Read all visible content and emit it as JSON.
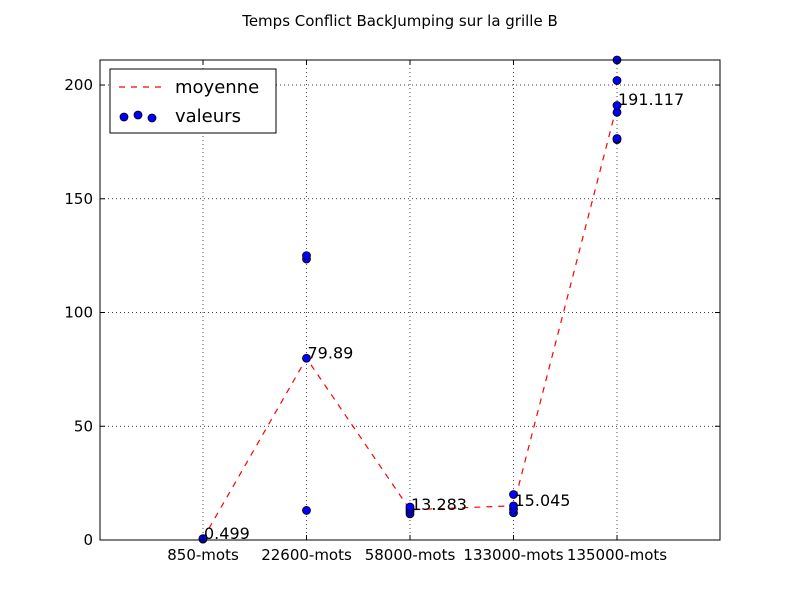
{
  "chart_data": {
    "type": "line",
    "title": "Temps Conflict BackJumping sur la grille B",
    "xlabel": "",
    "ylabel": "",
    "categories": [
      "850-mots",
      "22600-mots",
      "58000-mots",
      "133000-mots",
      "135000-mots"
    ],
    "ylim": [
      0,
      211
    ],
    "yticks": [
      0,
      50,
      100,
      150,
      200
    ],
    "grid": true,
    "legend_position": "top-left",
    "series": [
      {
        "name": "moyenne",
        "kind": "line",
        "style": "dashed",
        "color": "#ff0000",
        "values": [
          0.499,
          79.89,
          13.283,
          15.045,
          191.117
        ],
        "labels": [
          "0.499",
          "79.89",
          "13.283",
          "15.045",
          "191.117"
        ]
      },
      {
        "name": "valeurs",
        "kind": "scatter",
        "color": "#0000ff",
        "points": [
          {
            "x": "850-mots",
            "y": 0.4
          },
          {
            "x": "850-mots",
            "y": 0.5
          },
          {
            "x": "850-mots",
            "y": 0.6
          },
          {
            "x": "22600-mots",
            "y": 13
          },
          {
            "x": "22600-mots",
            "y": 79.89
          },
          {
            "x": "22600-mots",
            "y": 123.5
          },
          {
            "x": "22600-mots",
            "y": 125
          },
          {
            "x": "58000-mots",
            "y": 11.5
          },
          {
            "x": "58000-mots",
            "y": 12.5
          },
          {
            "x": "58000-mots",
            "y": 13.5
          },
          {
            "x": "58000-mots",
            "y": 14.5
          },
          {
            "x": "133000-mots",
            "y": 12
          },
          {
            "x": "133000-mots",
            "y": 13.5
          },
          {
            "x": "133000-mots",
            "y": 15
          },
          {
            "x": "133000-mots",
            "y": 20
          },
          {
            "x": "135000-mots",
            "y": 176
          },
          {
            "x": "135000-mots",
            "y": 176.5
          },
          {
            "x": "135000-mots",
            "y": 188
          },
          {
            "x": "135000-mots",
            "y": 191
          },
          {
            "x": "135000-mots",
            "y": 202
          },
          {
            "x": "135000-mots",
            "y": 211
          }
        ]
      }
    ]
  }
}
